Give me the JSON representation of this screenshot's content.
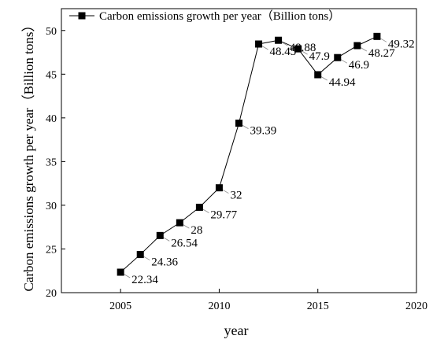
{
  "chart_data": {
    "type": "line",
    "title": "",
    "xlabel": "year",
    "ylabel": "Carbon emissions growth per year（Billion tons）",
    "x": [
      2005,
      2006,
      2007,
      2008,
      2009,
      2010,
      2011,
      2012,
      2013,
      2014,
      2015,
      2016,
      2017,
      2018
    ],
    "series": [
      {
        "name": "Carbon emissions growth per year（Billion tons）",
        "values": [
          22.34,
          24.36,
          26.54,
          28,
          29.77,
          32,
          39.39,
          48.45,
          48.88,
          47.9,
          44.94,
          46.9,
          48.27,
          49.32
        ],
        "labels": [
          "22.34",
          "24.36",
          "26.54",
          "28",
          "29.77",
          "32",
          "39.39",
          "48.45",
          "48.88",
          "47.9",
          "44.94",
          "46.9",
          "48.27",
          "49.32"
        ]
      }
    ],
    "xlim": [
      2002,
      2020
    ],
    "ylim": [
      20,
      52.5
    ],
    "xticks": [
      2005,
      2010,
      2015,
      2020
    ],
    "yticks": [
      20,
      25,
      30,
      35,
      40,
      45,
      50
    ],
    "grid": false,
    "legend_position": "top-left"
  }
}
